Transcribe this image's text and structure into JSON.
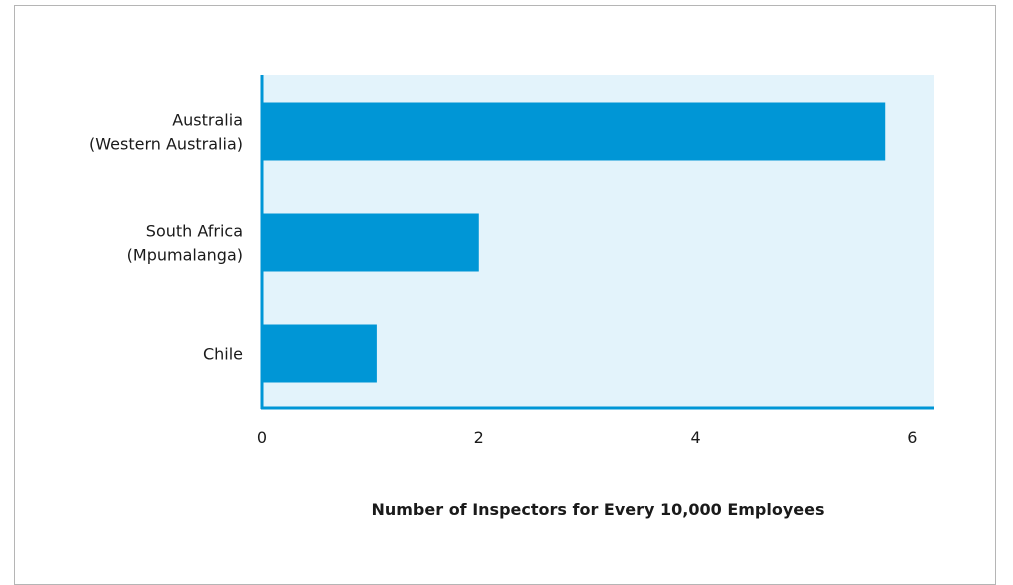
{
  "chart_data": {
    "type": "bar",
    "orientation": "horizontal",
    "categories": [
      [
        "Australia",
        "(Western Australia)"
      ],
      [
        "South Africa",
        "(Mpumalanga)"
      ],
      [
        "Chile"
      ]
    ],
    "values": [
      5.75,
      2.0,
      1.06
    ],
    "xticks": [
      "0",
      "2",
      "4",
      "6"
    ],
    "xlim": [
      0,
      6.2
    ],
    "xlabel": "Number of Inspectors for Every 10,000 Employees",
    "ylabel": "",
    "grid": false,
    "legend": "none",
    "colors": {
      "bar": "#0096d6",
      "plot_bg": "#e3f3fb",
      "axis": "#0096d6"
    }
  }
}
